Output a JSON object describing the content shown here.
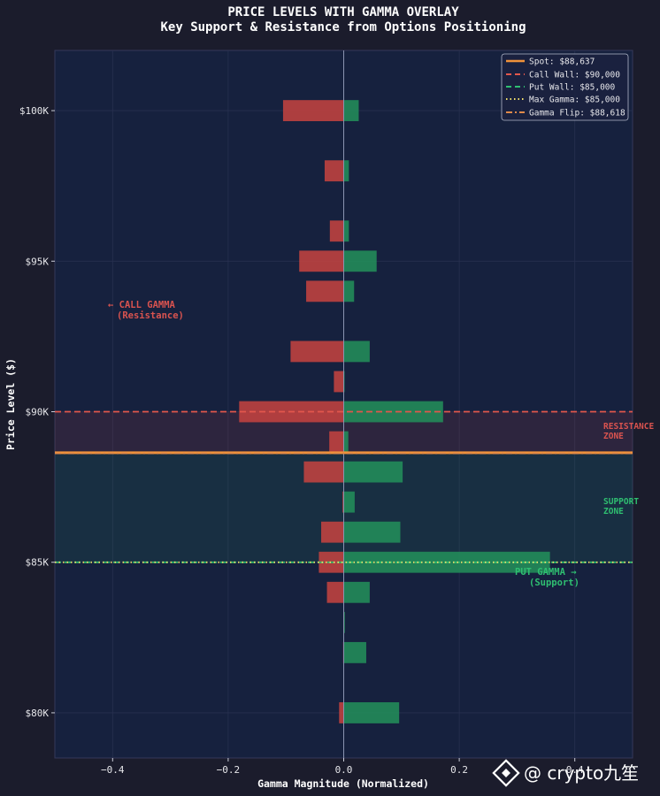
{
  "chart_data": {
    "type": "bar",
    "orientation": "horizontal",
    "title": "PRICE LEVELS WITH GAMMA OVERLAY",
    "subtitle": "Key Support & Resistance from Options Positioning",
    "xlabel": "Gamma Magnitude (Normalized)",
    "ylabel": "Price Level ($)",
    "xlim": [
      -0.5,
      0.5
    ],
    "ylim": [
      78500,
      102000
    ],
    "x_ticks": [
      -0.4,
      -0.2,
      0.0,
      0.2,
      0.4
    ],
    "x_tick_labels": [
      "−0.4",
      "−0.2",
      "0.0",
      "0.2",
      "0.4"
    ],
    "y_ticks": [
      80000,
      85000,
      90000,
      95000,
      100000
    ],
    "y_tick_labels": [
      "$80K",
      "$85K",
      "$90K",
      "$95K",
      "$100K"
    ],
    "bar_height": 700,
    "series": [
      {
        "name": "Call Gamma",
        "color": "#c8433f",
        "points": [
          {
            "price": 100000,
            "value": -0.105
          },
          {
            "price": 98000,
            "value": -0.033
          },
          {
            "price": 96000,
            "value": -0.024
          },
          {
            "price": 95000,
            "value": -0.077
          },
          {
            "price": 94000,
            "value": -0.065
          },
          {
            "price": 92000,
            "value": -0.092
          },
          {
            "price": 91000,
            "value": -0.017
          },
          {
            "price": 90000,
            "value": -0.181
          },
          {
            "price": 89000,
            "value": -0.025
          },
          {
            "price": 88000,
            "value": -0.069
          },
          {
            "price": 87000,
            "value": -0.002
          },
          {
            "price": 86000,
            "value": -0.039
          },
          {
            "price": 85000,
            "value": -0.043
          },
          {
            "price": 84000,
            "value": -0.029
          },
          {
            "price": 83000,
            "value": 0.0
          },
          {
            "price": 82000,
            "value": -0.001
          },
          {
            "price": 80000,
            "value": -0.008
          }
        ]
      },
      {
        "name": "Put Gamma",
        "color": "#23915a",
        "points": [
          {
            "price": 100000,
            "value": 0.026
          },
          {
            "price": 98000,
            "value": 0.009
          },
          {
            "price": 96000,
            "value": 0.009
          },
          {
            "price": 95000,
            "value": 0.057
          },
          {
            "price": 94000,
            "value": 0.018
          },
          {
            "price": 92000,
            "value": 0.045
          },
          {
            "price": 91000,
            "value": 0.001
          },
          {
            "price": 90000,
            "value": 0.172
          },
          {
            "price": 89000,
            "value": 0.008
          },
          {
            "price": 88000,
            "value": 0.102
          },
          {
            "price": 87000,
            "value": 0.019
          },
          {
            "price": 86000,
            "value": 0.098
          },
          {
            "price": 85000,
            "value": 0.357
          },
          {
            "price": 84000,
            "value": 0.045
          },
          {
            "price": 83000,
            "value": 0.002
          },
          {
            "price": 82000,
            "value": 0.039
          },
          {
            "price": 80000,
            "value": 0.096
          }
        ]
      }
    ],
    "reference_lines": [
      {
        "name": "spot",
        "label": "Spot: $88,637",
        "price": 88637,
        "color": "#f0923a",
        "style": "solid"
      },
      {
        "name": "call-wall",
        "label": "Call Wall: $90,000",
        "price": 90000,
        "color": "#e2574c",
        "style": "dashed"
      },
      {
        "name": "put-wall",
        "label": "Put Wall: $85,000",
        "price": 85000,
        "color": "#2fbf71",
        "style": "dashed"
      },
      {
        "name": "max-gamma",
        "label": "Max Gamma: $85,000",
        "price": 85000,
        "color": "#f5e36b",
        "style": "dotted"
      },
      {
        "name": "gamma-flip",
        "label": "Gamma Flip: $88,618",
        "price": 88618,
        "color": "#e0894a",
        "style": "dashdot"
      }
    ],
    "zones": [
      {
        "name": "resistance-zone",
        "from": 88637,
        "to": 90000,
        "color": "#c8433f"
      },
      {
        "name": "support-zone",
        "from": 85000,
        "to": 88637,
        "color": "#23915a"
      }
    ],
    "annotations": {
      "call_gamma_line1": "← CALL GAMMA",
      "call_gamma_line2": "(Resistance)",
      "put_gamma_line1": "PUT GAMMA →",
      "put_gamma_line2": "(Support)",
      "resistance_line1": "RESISTANCE",
      "resistance_line2": "ZONE",
      "support_line1": "SUPPORT",
      "support_line2": "ZONE"
    },
    "legend_position": "top-right",
    "grid": true
  },
  "watermark": "@ crypto九笙",
  "colors": {
    "background": "#1b1c2c",
    "plot_background": "#16213e",
    "resistance_text": "#d9534f",
    "support_text": "#2fbf71"
  }
}
